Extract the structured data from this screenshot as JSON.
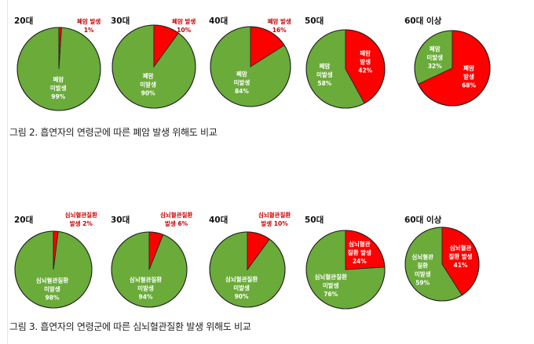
{
  "chart_data": [
    {
      "type": "pie",
      "caption": "그림 2. 흡연자의 연령군에 따른 폐암 발생 위해도 비교",
      "colors": {
        "occurrence": "#ff0000",
        "non_occurrence": "#6aab3a"
      },
      "pies": [
        {
          "age": "20대",
          "occurrence": {
            "label": "폐암 발생",
            "pct": 1,
            "pct_label": "1%"
          },
          "non_occurrence": {
            "label": "폐암\n미발생",
            "pct": 99,
            "pct_label": "99%"
          }
        },
        {
          "age": "30대",
          "occurrence": {
            "label": "폐암 발생",
            "pct": 10,
            "pct_label": "10%"
          },
          "non_occurrence": {
            "label": "폐암\n미발생",
            "pct": 90,
            "pct_label": "90%"
          }
        },
        {
          "age": "40대",
          "occurrence": {
            "label": "폐암 발생",
            "pct": 16,
            "pct_label": "16%"
          },
          "non_occurrence": {
            "label": "폐암\n미발생",
            "pct": 84,
            "pct_label": "84%"
          }
        },
        {
          "age": "50대",
          "occurrence": {
            "label": "폐암\n발생",
            "pct": 42,
            "pct_label": "42%"
          },
          "non_occurrence": {
            "label": "폐암\n미발생",
            "pct": 58,
            "pct_label": "58%"
          }
        },
        {
          "age": "60대 이상",
          "occurrence": {
            "label": "폐암\n발생",
            "pct": 68,
            "pct_label": "68%"
          },
          "non_occurrence": {
            "label": "폐암\n미발생",
            "pct": 32,
            "pct_label": "32%"
          }
        }
      ]
    },
    {
      "type": "pie",
      "caption": "그림 3. 흡연자의 연령군에 따른 심뇌혈관질환 발생 위해도 비교",
      "colors": {
        "occurrence": "#ff0000",
        "non_occurrence": "#6aab3a"
      },
      "pies": [
        {
          "age": "20대",
          "occurrence": {
            "label": "심뇌혈관질환\n발생",
            "pct": 2,
            "pct_label": "2%"
          },
          "non_occurrence": {
            "label": "심뇌혈관질환\n미발생",
            "pct": 98,
            "pct_label": "98%"
          }
        },
        {
          "age": "30대",
          "occurrence": {
            "label": "심뇌혈관질환\n발생",
            "pct": 6,
            "pct_label": "6%"
          },
          "non_occurrence": {
            "label": "심뇌혈관질환\n미발생",
            "pct": 94,
            "pct_label": "94%"
          }
        },
        {
          "age": "40대",
          "occurrence": {
            "label": "심뇌혈관질환\n발생",
            "pct": 10,
            "pct_label": "10%"
          },
          "non_occurrence": {
            "label": "심뇌혈관질환\n미발생",
            "pct": 90,
            "pct_label": "90%"
          }
        },
        {
          "age": "50대",
          "occurrence": {
            "label": "심뇌혈관\n질환 발생",
            "pct": 24,
            "pct_label": "24%"
          },
          "non_occurrence": {
            "label": "심뇌혈관질환\n미발생",
            "pct": 76,
            "pct_label": "76%"
          }
        },
        {
          "age": "60대 이상",
          "occurrence": {
            "label": "심뇌혈관\n질환 발생",
            "pct": 41,
            "pct_label": "41%"
          },
          "non_occurrence": {
            "label": "심뇌혈관\n질환\n미발생",
            "pct": 59,
            "pct_label": "59%"
          }
        }
      ]
    }
  ]
}
